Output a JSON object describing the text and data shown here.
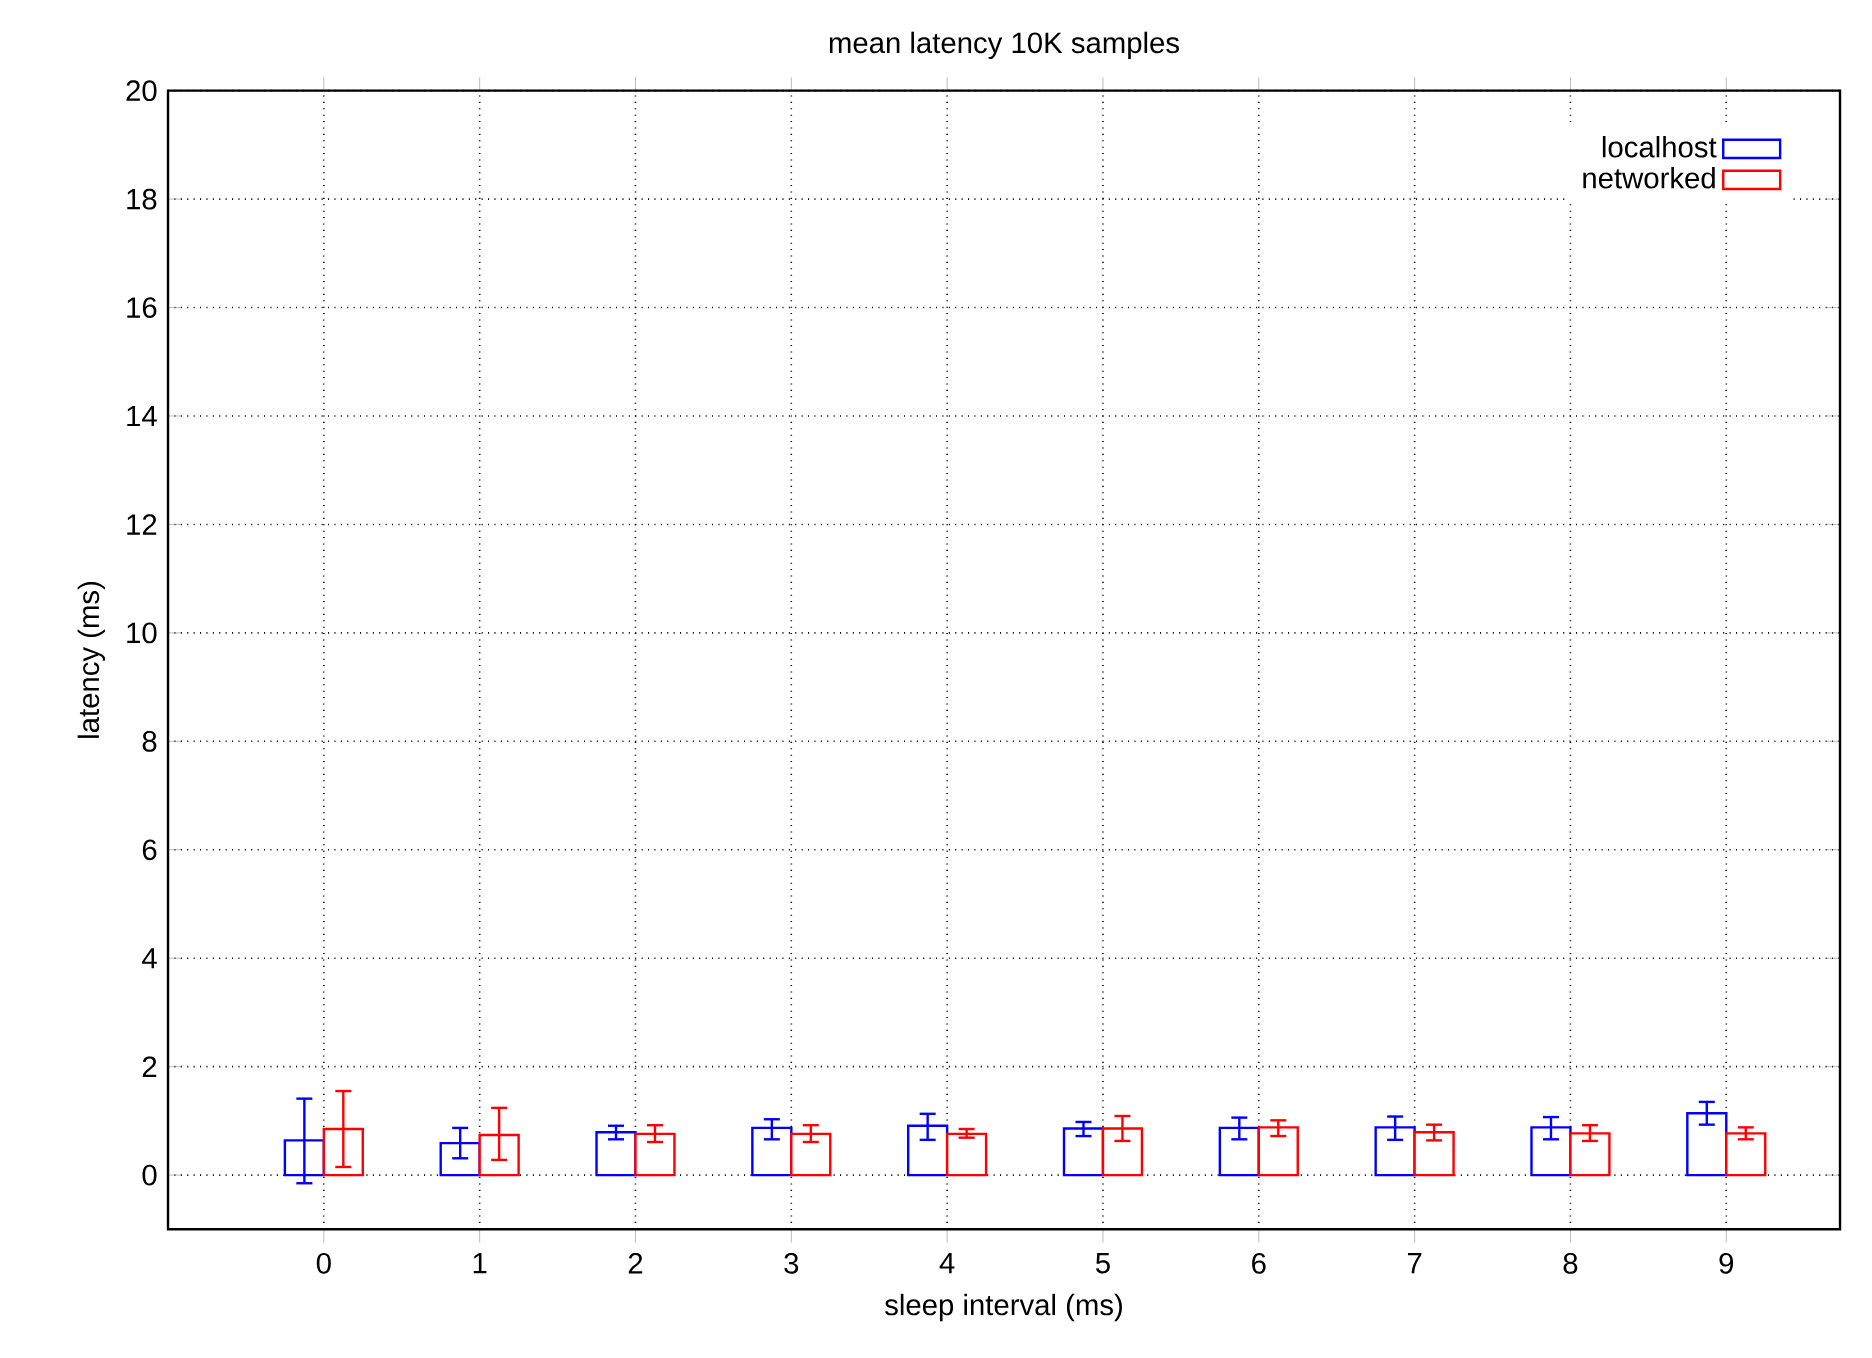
{
  "chart_data": {
    "type": "bar",
    "title": "mean latency 10K samples",
    "xlabel": "sleep interval (ms)",
    "ylabel": "latency (ms)",
    "categories": [
      "0",
      "1",
      "2",
      "3",
      "4",
      "5",
      "6",
      "7",
      "8",
      "9"
    ],
    "ylim": [
      -1,
      20
    ],
    "yticks": [
      0,
      2,
      4,
      6,
      8,
      10,
      12,
      14,
      16,
      18,
      20
    ],
    "grid": true,
    "legend": "top right",
    "series": [
      {
        "name": "localhost",
        "color": "#0000ff",
        "values": [
          0.64,
          0.59,
          0.79,
          0.87,
          0.91,
          0.86,
          0.87,
          0.88,
          0.88,
          1.14
        ],
        "errors": [
          [
            -0.15,
            1.41
          ],
          [
            0.31,
            0.87
          ],
          [
            0.66,
            0.91
          ],
          [
            0.66,
            1.03
          ],
          [
            0.65,
            1.13
          ],
          [
            0.72,
            0.98
          ],
          [
            0.66,
            1.06
          ],
          [
            0.65,
            1.08
          ],
          [
            0.66,
            1.07
          ],
          [
            0.93,
            1.35
          ]
        ]
      },
      {
        "name": "networked",
        "color": "#ff0000",
        "values": [
          0.85,
          0.74,
          0.76,
          0.76,
          0.76,
          0.86,
          0.88,
          0.79,
          0.77,
          0.77
        ],
        "errors": [
          [
            0.15,
            1.55
          ],
          [
            0.28,
            1.24
          ],
          [
            0.61,
            0.92
          ],
          [
            0.61,
            0.92
          ],
          [
            0.69,
            0.85
          ],
          [
            0.63,
            1.09
          ],
          [
            0.72,
            1.01
          ],
          [
            0.64,
            0.93
          ],
          [
            0.63,
            0.92
          ],
          [
            0.66,
            0.88
          ]
        ]
      }
    ]
  }
}
